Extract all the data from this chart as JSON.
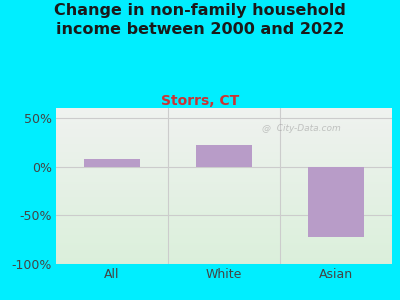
{
  "title": "Change in non-family household\nincome between 2000 and 2022",
  "subtitle": "Storrs, CT",
  "categories": [
    "All",
    "White",
    "Asian"
  ],
  "values": [
    8,
    22,
    -72
  ],
  "bar_color": "#b89cc8",
  "title_color": "#1a1a1a",
  "subtitle_color": "#cc3333",
  "title_fontsize": 11.5,
  "subtitle_fontsize": 10,
  "tick_fontsize": 9,
  "ytick_color": "#444444",
  "ylim": [
    -100,
    60
  ],
  "yticks": [
    -100,
    -50,
    0,
    50
  ],
  "ytick_labels": [
    "-100%",
    "-50%",
    "0%",
    "50%"
  ],
  "background_outer": "#00eeff",
  "background_inner_topleft": "#e8ede8",
  "background_inner_topright": "#dde8ee",
  "background_inner_bottom": "#ddeedd",
  "gridline_color": "#cccccc",
  "watermark": "@  City-Data.com",
  "bar_width": 0.5
}
